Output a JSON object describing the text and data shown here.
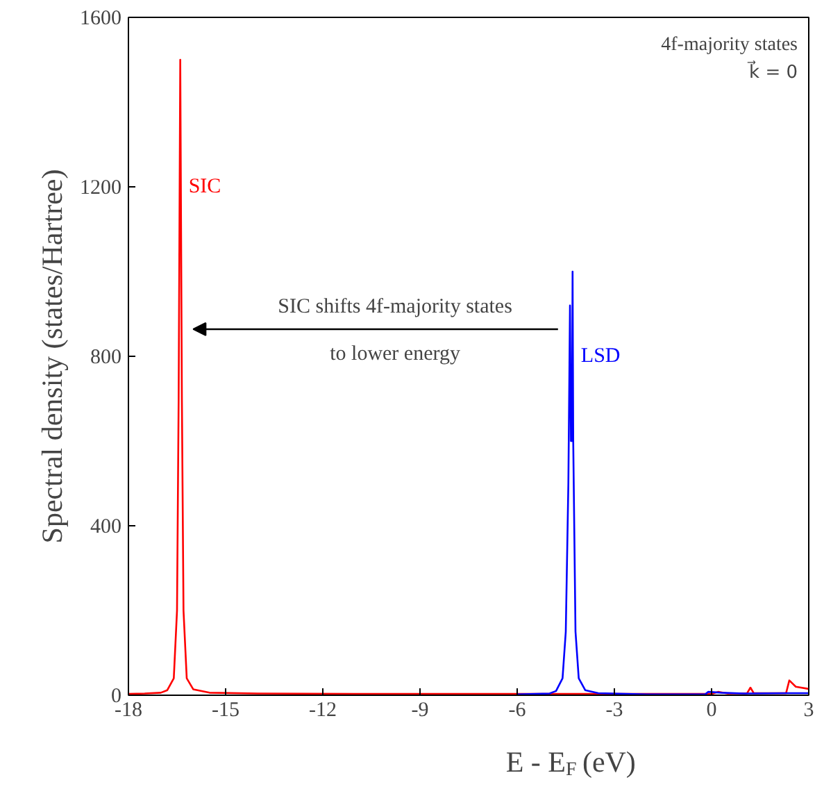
{
  "chart_data": {
    "type": "line",
    "xlabel": "E - E$_{F}$ (eV)",
    "ylabel": "Spectral density (states/Hartree)",
    "xlim": [
      -18,
      3
    ],
    "ylim": [
      0,
      1600
    ],
    "xticks": [
      -18,
      -15,
      -12,
      -9,
      -6,
      -3,
      0,
      3
    ],
    "yticks": [
      0,
      400,
      800,
      1200,
      1600
    ],
    "grid": false,
    "legend": false,
    "marker": "none",
    "line_style": "solid",
    "series": [
      {
        "name": "SIC",
        "color": "#ff0000",
        "x": [
          -18,
          -17.5,
          -17,
          -16.8,
          -16.6,
          -16.5,
          -16.45,
          -16.4,
          -16.35,
          -16.3,
          -16.2,
          -16,
          -15.5,
          -14,
          -10,
          -6,
          -3,
          0,
          0.2,
          0.5,
          1.1,
          1.2,
          1.3,
          2.3,
          2.4,
          2.6,
          3
        ],
        "values": [
          3,
          4,
          6,
          12,
          40,
          200,
          700,
          1500,
          700,
          200,
          40,
          14,
          6,
          4,
          3,
          3,
          3,
          3,
          8,
          4,
          5,
          18,
          5,
          5,
          35,
          20,
          15
        ]
      },
      {
        "name": "LSD",
        "color": "#0000ff",
        "x": [
          -6,
          -5,
          -4.8,
          -4.6,
          -4.5,
          -4.42,
          -4.37,
          -4.34,
          -4.31,
          -4.29,
          -4.27,
          -4.2,
          -4.1,
          -3.9,
          -3.5,
          -2,
          -0.2,
          -0.1,
          0.3,
          1,
          2.4,
          3
        ],
        "values": [
          2,
          4,
          10,
          40,
          150,
          500,
          920,
          600,
          600,
          1000,
          600,
          150,
          40,
          12,
          5,
          2,
          2,
          8,
          6,
          4,
          5,
          5
        ]
      }
    ],
    "annotations": [
      "SIC shifts 4f-majority states",
      "to lower energy",
      {
        "text": "4f-majority states"
      },
      {
        "text": "k⃗ = 0"
      }
    ]
  }
}
